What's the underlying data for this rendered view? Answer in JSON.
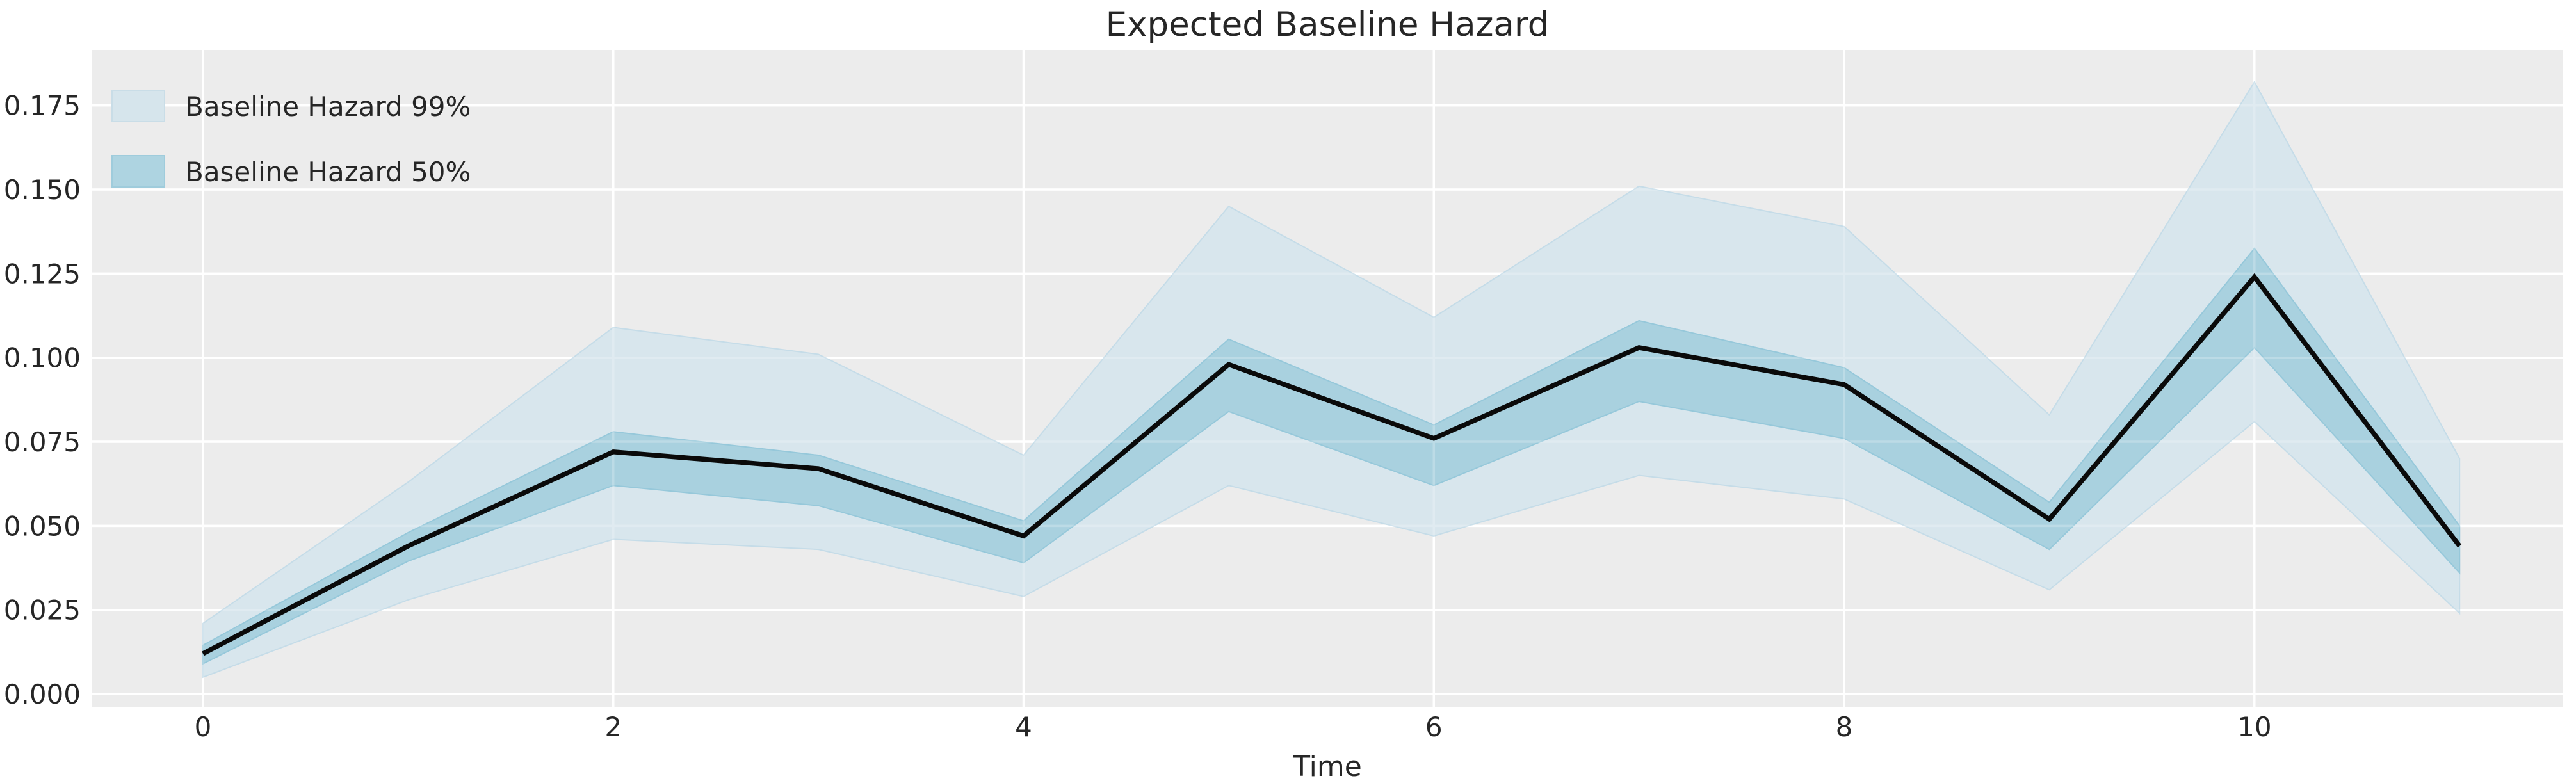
{
  "title": "Expected Baseline Hazard",
  "axes": {
    "xlabel": "Time"
  },
  "legend": {
    "items": [
      {
        "label": "Baseline Hazard 99%",
        "color": "#d6e5ec"
      },
      {
        "label": "Baseline Hazard 50%",
        "color": "#aed4e1"
      }
    ]
  },
  "colors": {
    "figure_background": "#ffffff",
    "plot_background": "#ececec",
    "grid": "#ffffff",
    "line": "#0a0a0a",
    "band_99": "#d8e6ed",
    "band_99_edge": "#c5dce8",
    "band_50": "#a9d1df",
    "band_50_edge": "#96c8da",
    "text": "#262626"
  },
  "chart_data": {
    "type": "line",
    "title": "Expected Baseline Hazard",
    "xlabel": "Time",
    "ylabel": "",
    "grid": true,
    "legend_position": "upper left",
    "xlim": [
      -0.543,
      11.505
    ],
    "ylim": [
      -0.0038,
      0.1915
    ],
    "xticks": {
      "values": [
        0,
        2,
        4,
        6,
        8,
        10
      ],
      "labels": [
        "0",
        "2",
        "4",
        "6",
        "8",
        "10"
      ]
    },
    "yticks": {
      "values": [
        0.0,
        0.025,
        0.05,
        0.075,
        0.1,
        0.125,
        0.15,
        0.175
      ],
      "labels": [
        "0.000",
        "0.025",
        "0.050",
        "0.075",
        "0.100",
        "0.125",
        "0.150",
        "0.175"
      ]
    },
    "x": [
      0,
      1,
      2,
      3,
      4,
      5,
      6,
      7,
      8,
      9,
      10,
      11
    ],
    "series": [
      {
        "name": "Baseline Hazard 99%",
        "type": "band",
        "lower": [
          0.005,
          0.028,
          0.046,
          0.043,
          0.029,
          0.062,
          0.047,
          0.065,
          0.058,
          0.031,
          0.081,
          0.024
        ],
        "upper": [
          0.021,
          0.063,
          0.109,
          0.101,
          0.071,
          0.145,
          0.112,
          0.151,
          0.139,
          0.083,
          0.182,
          0.07
        ]
      },
      {
        "name": "Baseline Hazard 50%",
        "type": "band",
        "lower": [
          0.009,
          0.0395,
          0.062,
          0.056,
          0.039,
          0.084,
          0.062,
          0.087,
          0.076,
          0.043,
          0.103,
          0.036
        ],
        "upper": [
          0.0145,
          0.048,
          0.078,
          0.071,
          0.0515,
          0.1055,
          0.08,
          0.111,
          0.097,
          0.057,
          0.1325,
          0.05
        ]
      },
      {
        "name": "Expected Baseline Hazard",
        "type": "line",
        "values": [
          0.012,
          0.044,
          0.072,
          0.067,
          0.047,
          0.098,
          0.076,
          0.103,
          0.092,
          0.052,
          0.124,
          0.044
        ]
      }
    ]
  }
}
